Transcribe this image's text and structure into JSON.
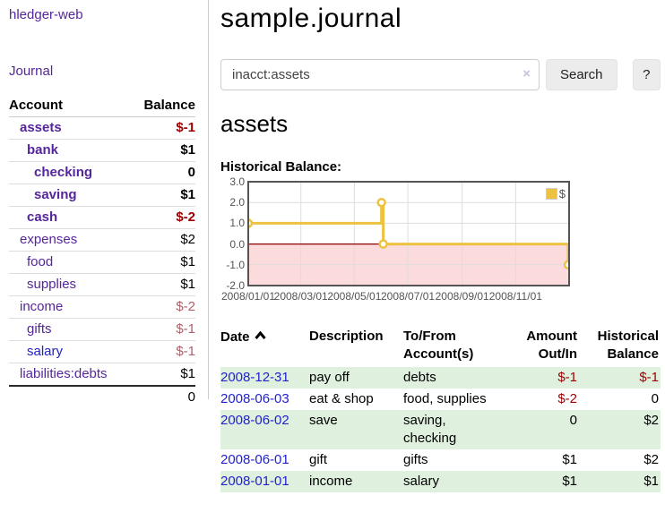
{
  "app": {
    "brand": "hledger-web"
  },
  "nav": {
    "journal_label": "Journal"
  },
  "sidebar": {
    "columns": {
      "account": "Account",
      "balance": "Balance"
    },
    "accounts": [
      {
        "name": "assets",
        "indent": 1,
        "balance": "$-1",
        "bold": true,
        "balance_class": "neg-strong"
      },
      {
        "name": "bank",
        "indent": 2,
        "balance": "$1",
        "bold": true,
        "balance_class": ""
      },
      {
        "name": "checking",
        "indent": 3,
        "balance": "0",
        "bold": true,
        "balance_class": ""
      },
      {
        "name": "saving",
        "indent": 3,
        "balance": "$1",
        "bold": true,
        "balance_class": ""
      },
      {
        "name": "cash",
        "indent": 2,
        "balance": "$-2",
        "bold": true,
        "balance_class": "neg-strong"
      },
      {
        "name": "expenses",
        "indent": 1,
        "balance": "$2",
        "bold": false,
        "balance_class": ""
      },
      {
        "name": "food",
        "indent": 2,
        "balance": "$1",
        "bold": false,
        "balance_class": ""
      },
      {
        "name": "supplies",
        "indent": 2,
        "balance": "$1",
        "bold": false,
        "balance_class": ""
      },
      {
        "name": "income",
        "indent": 1,
        "balance": "$-2",
        "bold": false,
        "balance_class": "neg-muted"
      },
      {
        "name": "gifts",
        "indent": 2,
        "balance": "$-1",
        "bold": false,
        "balance_class": "neg-muted"
      },
      {
        "name": "salary",
        "indent": 2,
        "balance": "$-1",
        "bold": false,
        "balance_class": "neg-muted",
        "link_blue": true
      },
      {
        "name": "liabilities:debts",
        "indent": 1,
        "balance": "$1",
        "bold": false,
        "balance_class": ""
      }
    ],
    "total": "0"
  },
  "main": {
    "title": "sample.journal"
  },
  "search": {
    "value": "inacct:assets",
    "clear_icon": "×",
    "button_label": "Search",
    "help_label": "?"
  },
  "account_page": {
    "heading": "assets",
    "chart_heading": "Historical Balance:"
  },
  "chart_data": {
    "type": "line",
    "title": "Historical Balance",
    "series": [
      {
        "name": "$",
        "color": "#edc240",
        "style": "step-after",
        "points": [
          {
            "date": "2008-01-01",
            "value": 1
          },
          {
            "date": "2008-06-01",
            "value": 2
          },
          {
            "date": "2008-06-03",
            "value": 0
          },
          {
            "date": "2008-12-31",
            "value": -1
          }
        ]
      }
    ],
    "ylim": [
      -2,
      3
    ],
    "yticks": [
      "3.0",
      "2.0",
      "1.0",
      "0.0",
      "-1.0",
      "-2.0"
    ],
    "xrange": [
      "2008-01-01",
      "2009-01-01"
    ],
    "xticks": [
      {
        "date": "2008-01-01",
        "label": "2008/01/01"
      },
      {
        "date": "2008-03-01",
        "label": "2008/03/01"
      },
      {
        "date": "2008-05-01",
        "label": "2008/05/01"
      },
      {
        "date": "2008-07-01",
        "label": "2008/07/01"
      },
      {
        "date": "2008-09-01",
        "label": "2008/09/01"
      },
      {
        "date": "2008-11-01",
        "label": "2008/11/01"
      }
    ],
    "grid": true,
    "negative_region_color": "#fbdbdb",
    "zero_line_color": "#8b0000",
    "legend": {
      "label": "$",
      "position": "top-right"
    }
  },
  "register": {
    "headers": {
      "date": "Date",
      "description": "Description",
      "accounts_line1": "To/From",
      "accounts_line2": "Account(s)",
      "amount_line1": "Amount",
      "amount_line2": "Out/In",
      "balance_line1": "Historical",
      "balance_line2": "Balance"
    },
    "rows": [
      {
        "date": "2008-12-31",
        "description": "pay off",
        "accounts": "debts",
        "amount": "$-1",
        "amount_class": "neg-strong",
        "balance": "$-1",
        "balance_class": "neg-strong"
      },
      {
        "date": "2008-06-03",
        "description": "eat & shop",
        "accounts": "food, supplies",
        "amount": "$-2",
        "amount_class": "neg-strong",
        "balance": "0",
        "balance_class": ""
      },
      {
        "date": "2008-06-02",
        "description": "save",
        "accounts": "saving,\nchecking",
        "amount": "0",
        "amount_class": "",
        "balance": "$2",
        "balance_class": ""
      },
      {
        "date": "2008-06-01",
        "description": "gift",
        "accounts": "gifts",
        "amount": "$1",
        "amount_class": "",
        "balance": "$2",
        "balance_class": ""
      },
      {
        "date": "2008-01-01",
        "description": "income",
        "accounts": "salary",
        "amount": "$1",
        "amount_class": "",
        "balance": "$1",
        "balance_class": ""
      }
    ]
  }
}
